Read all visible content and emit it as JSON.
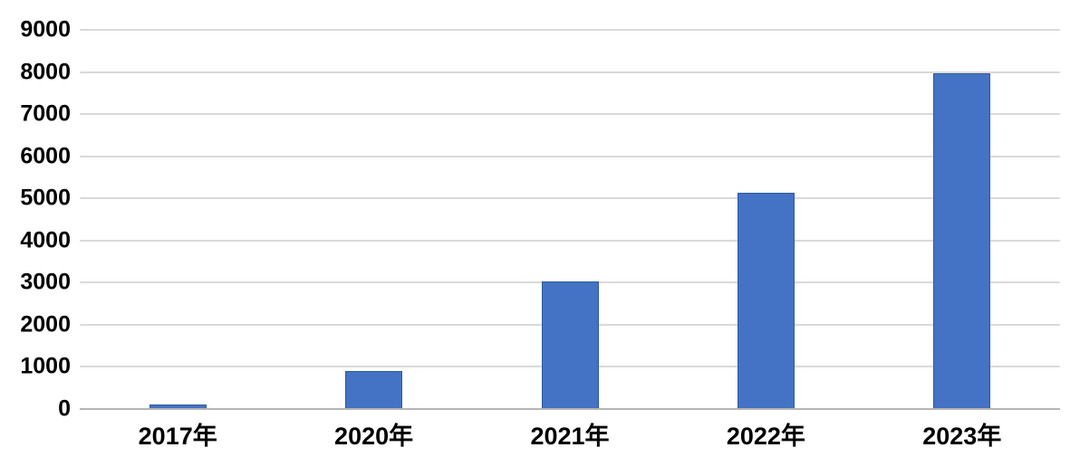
{
  "chart_data": {
    "type": "bar",
    "title": "",
    "xlabel": "",
    "ylabel": "",
    "categories": [
      "2017年",
      "2020年",
      "2021年",
      "2022年",
      "2023年"
    ],
    "values": [
      100,
      900,
      3030,
      5130,
      7960
    ],
    "ylim": [
      0,
      9000
    ],
    "yticks": [
      0,
      1000,
      2000,
      3000,
      4000,
      5000,
      6000,
      7000,
      8000,
      9000
    ],
    "grid": true,
    "legend": false,
    "colors": {
      "bar_fill": "#4472C4",
      "bar_border": "#2E5B9B",
      "gridline": "#D9D9D9",
      "axis_line": "#B5B5B5",
      "text": "#000000",
      "background": "#FFFFFF"
    }
  }
}
